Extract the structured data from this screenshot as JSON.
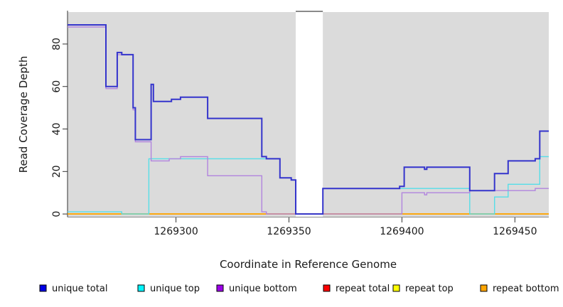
{
  "figure": {
    "x_axis_title": "Coordinate in Reference Genome",
    "y_axis_title": "Read Coverage Depth",
    "plot_bg_color": "#dbdbdb",
    "axis_color": "#333333",
    "no_data_band": {
      "from": 1269353,
      "to": 1269365,
      "fill": "#ffffff",
      "cap_color": "#8a8a8a"
    }
  },
  "chart_data": {
    "type": "line",
    "step": true,
    "title": "",
    "xlabel": "Coordinate in Reference Genome",
    "ylabel": "Read Coverage Depth",
    "xlim": [
      1269252,
      1269465
    ],
    "ylim": [
      -1.3,
      95.7
    ],
    "x_ticks": [
      1269300,
      1269350,
      1269400,
      1269450
    ],
    "x_tick_labels": [
      "1269300",
      "1269350",
      "1269400",
      "1269450"
    ],
    "y_ticks": [
      0,
      20,
      40,
      60,
      80
    ],
    "y_tick_labels": [
      "0",
      "20",
      "40",
      "60",
      "80"
    ],
    "grid": false,
    "legend_position": "bottom",
    "draw_order": [
      "repeat total",
      "repeat top",
      "repeat bottom",
      "unique top",
      "unique bottom",
      "unique total"
    ],
    "series": [
      {
        "name": "unique total",
        "swatch_color": "#0000e6",
        "line_color": "#3434cc",
        "line_width": 2,
        "points": [
          [
            1269252,
            89
          ],
          [
            1269269,
            60
          ],
          [
            1269274,
            76
          ],
          [
            1269276,
            75
          ],
          [
            1269281,
            50
          ],
          [
            1269282,
            35
          ],
          [
            1269289,
            61
          ],
          [
            1269290,
            53
          ],
          [
            1269298,
            54
          ],
          [
            1269302,
            55
          ],
          [
            1269314,
            45
          ],
          [
            1269338,
            27
          ],
          [
            1269340,
            26
          ],
          [
            1269346,
            17
          ],
          [
            1269351,
            16
          ],
          [
            1269353,
            0
          ],
          [
            1269365,
            12
          ],
          [
            1269399,
            13
          ],
          [
            1269401,
            22
          ],
          [
            1269410,
            21
          ],
          [
            1269411,
            22
          ],
          [
            1269430,
            11
          ],
          [
            1269441,
            19
          ],
          [
            1269447,
            25
          ],
          [
            1269459,
            26
          ],
          [
            1269461,
            39
          ],
          [
            1269465,
            39
          ]
        ]
      },
      {
        "name": "unique top",
        "swatch_color": "#00f5ff",
        "line_color": "#55dee8",
        "line_width": 1.4,
        "points": [
          [
            1269252,
            1
          ],
          [
            1269276,
            0
          ],
          [
            1269288,
            26
          ],
          [
            1269346,
            17
          ],
          [
            1269351,
            16
          ],
          [
            1269353,
            0
          ],
          [
            1269365,
            12
          ],
          [
            1269430,
            0
          ],
          [
            1269441,
            8
          ],
          [
            1269447,
            14
          ],
          [
            1269461,
            27
          ],
          [
            1269465,
            27
          ]
        ]
      },
      {
        "name": "unique bottom",
        "swatch_color": "#9c00e8",
        "line_color": "#b184de",
        "line_width": 1.4,
        "points": [
          [
            1269252,
            88
          ],
          [
            1269269,
            59
          ],
          [
            1269274,
            75
          ],
          [
            1269281,
            49
          ],
          [
            1269282,
            34
          ],
          [
            1269289,
            25
          ],
          [
            1269297,
            26
          ],
          [
            1269302,
            27
          ],
          [
            1269314,
            18
          ],
          [
            1269338,
            1
          ],
          [
            1269340,
            0
          ],
          [
            1269400,
            10
          ],
          [
            1269410,
            9
          ],
          [
            1269411,
            10
          ],
          [
            1269430,
            11
          ],
          [
            1269459,
            12
          ],
          [
            1269465,
            12
          ]
        ]
      },
      {
        "name": "repeat total",
        "swatch_color": "#ff0000",
        "line_color": "#e03040",
        "line_width": 1.5,
        "points": [
          [
            1269252,
            0
          ],
          [
            1269465,
            0
          ]
        ]
      },
      {
        "name": "repeat top",
        "swatch_color": "#ffff00",
        "line_color": "#f0e000",
        "line_width": 1.5,
        "points": [
          [
            1269252,
            0
          ],
          [
            1269465,
            0
          ]
        ]
      },
      {
        "name": "repeat bottom",
        "swatch_color": "#ffa500",
        "line_color": "#ffa500",
        "line_width": 1.8,
        "points": [
          [
            1269252,
            0
          ],
          [
            1269465,
            0
          ]
        ]
      }
    ]
  },
  "legend": {
    "items": [
      {
        "label": "unique total",
        "color": "#0000e6"
      },
      {
        "label": "unique top",
        "color": "#00f5ff"
      },
      {
        "label": "unique bottom",
        "color": "#9c00e8"
      },
      {
        "label": "repeat total",
        "color": "#ff0000"
      },
      {
        "label": "repeat top",
        "color": "#ffff00"
      },
      {
        "label": "repeat bottom",
        "color": "#ffa500"
      }
    ]
  }
}
